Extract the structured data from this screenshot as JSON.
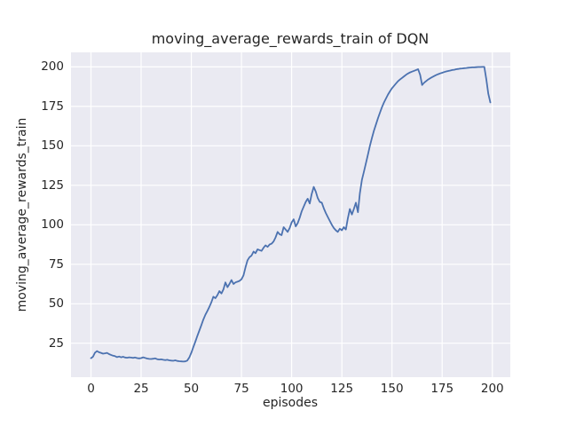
{
  "figure": {
    "title": "moving_average_rewards_train of DQN",
    "xlabel": "episodes",
    "ylabel": "moving_average_rewards_train"
  },
  "chart_data": {
    "type": "line",
    "title": "moving_average_rewards_train of DQN",
    "xlabel": "episodes",
    "ylabel": "moving_average_rewards_train",
    "grid": true,
    "legend": "none",
    "style": "seaborn-darkgrid",
    "line_color": "#4c72b0",
    "plot_background": "#eaeaf2",
    "grid_color": "#ffffff",
    "text_color": "#262626",
    "x_ticks": [
      0,
      25,
      50,
      75,
      100,
      125,
      150,
      175,
      200
    ],
    "y_ticks": [
      25,
      50,
      75,
      100,
      125,
      150,
      175,
      200
    ],
    "xlim": [
      -9.95,
      208.95
    ],
    "ylim": [
      3.5,
      209.2
    ],
    "x": [
      0,
      1,
      2,
      3,
      4,
      5,
      6,
      7,
      8,
      9,
      10,
      11,
      12,
      13,
      14,
      15,
      16,
      17,
      18,
      19,
      20,
      21,
      22,
      23,
      24,
      25,
      26,
      27,
      28,
      29,
      30,
      31,
      32,
      33,
      34,
      35,
      36,
      37,
      38,
      39,
      40,
      41,
      42,
      43,
      44,
      45,
      46,
      47,
      48,
      49,
      50,
      51,
      52,
      53,
      54,
      55,
      56,
      57,
      58,
      59,
      60,
      61,
      62,
      63,
      64,
      65,
      66,
      67,
      68,
      69,
      70,
      71,
      72,
      73,
      74,
      75,
      76,
      77,
      78,
      79,
      80,
      81,
      82,
      83,
      84,
      85,
      86,
      87,
      88,
      89,
      90,
      91,
      92,
      93,
      94,
      95,
      96,
      97,
      98,
      99,
      100,
      101,
      102,
      103,
      104,
      105,
      106,
      107,
      108,
      109,
      110,
      111,
      112,
      113,
      114,
      115,
      116,
      117,
      118,
      119,
      120,
      121,
      122,
      123,
      124,
      125,
      126,
      127,
      128,
      129,
      130,
      131,
      132,
      133,
      134,
      135,
      136,
      137,
      138,
      139,
      140,
      141,
      142,
      143,
      144,
      145,
      146,
      147,
      148,
      149,
      150,
      151,
      152,
      153,
      154,
      155,
      156,
      157,
      158,
      159,
      160,
      161,
      162,
      163,
      164,
      165,
      166,
      167,
      168,
      169,
      170,
      171,
      172,
      173,
      174,
      175,
      176,
      177,
      178,
      179,
      180,
      181,
      182,
      183,
      184,
      185,
      186,
      187,
      188,
      189,
      190,
      191,
      192,
      193,
      194,
      195,
      196,
      197,
      198,
      199
    ],
    "values": [
      15.5,
      16.5,
      19.0,
      20.0,
      19.3,
      18.9,
      18.4,
      18.6,
      18.9,
      18.1,
      17.6,
      17.1,
      16.8,
      16.2,
      16.6,
      16.1,
      16.4,
      16.0,
      15.8,
      16.1,
      15.9,
      15.7,
      16.0,
      15.6,
      15.4,
      15.6,
      16.1,
      15.7,
      15.3,
      15.1,
      15.0,
      15.2,
      15.4,
      14.9,
      14.7,
      14.8,
      14.5,
      14.3,
      14.5,
      14.2,
      14.0,
      13.9,
      14.2,
      13.8,
      13.6,
      13.5,
      13.4,
      13.5,
      14.0,
      16.0,
      19.0,
      22.5,
      26.0,
      29.5,
      33.0,
      36.5,
      40.0,
      43.0,
      45.5,
      48.0,
      51.0,
      54.5,
      53.5,
      55.5,
      58.0,
      56.5,
      59.0,
      63.5,
      60.5,
      62.5,
      65.0,
      62.5,
      63.5,
      64.0,
      64.5,
      65.5,
      68.0,
      73.0,
      77.5,
      79.5,
      80.5,
      83.0,
      82.0,
      84.5,
      84.0,
      83.5,
      85.5,
      87.0,
      86.0,
      87.5,
      88.0,
      89.5,
      92.0,
      95.5,
      94.0,
      93.5,
      98.5,
      97.0,
      95.5,
      98.0,
      101.5,
      103.5,
      99.0,
      101.0,
      104.5,
      108.5,
      111.5,
      114.5,
      116.5,
      113.5,
      119.5,
      124.0,
      121.0,
      117.0,
      114.5,
      114.0,
      110.5,
      107.5,
      105.0,
      102.5,
      100.0,
      98.0,
      96.5,
      95.5,
      97.5,
      96.5,
      98.5,
      97.0,
      104.0,
      110.0,
      106.5,
      110.0,
      114.0,
      108.0,
      120.0,
      128.5,
      133.5,
      139.0,
      144.5,
      150.0,
      155.0,
      159.5,
      163.5,
      167.5,
      171.0,
      174.5,
      177.5,
      180.0,
      182.5,
      184.5,
      186.5,
      188.0,
      189.5,
      191.0,
      192.0,
      193.0,
      194.0,
      195.0,
      195.8,
      196.5,
      197.0,
      197.5,
      198.0,
      198.5,
      195.0,
      188.5,
      190.0,
      191.0,
      192.0,
      192.8,
      193.5,
      194.2,
      194.8,
      195.4,
      195.9,
      196.3,
      196.7,
      197.1,
      197.4,
      197.7,
      198.0,
      198.2,
      198.5,
      198.7,
      198.9,
      199.0,
      199.2,
      199.3,
      199.5,
      199.6,
      199.7,
      199.7,
      199.8,
      199.9,
      199.9,
      200.0,
      200.0,
      192.0,
      183.0,
      177.5
    ]
  }
}
